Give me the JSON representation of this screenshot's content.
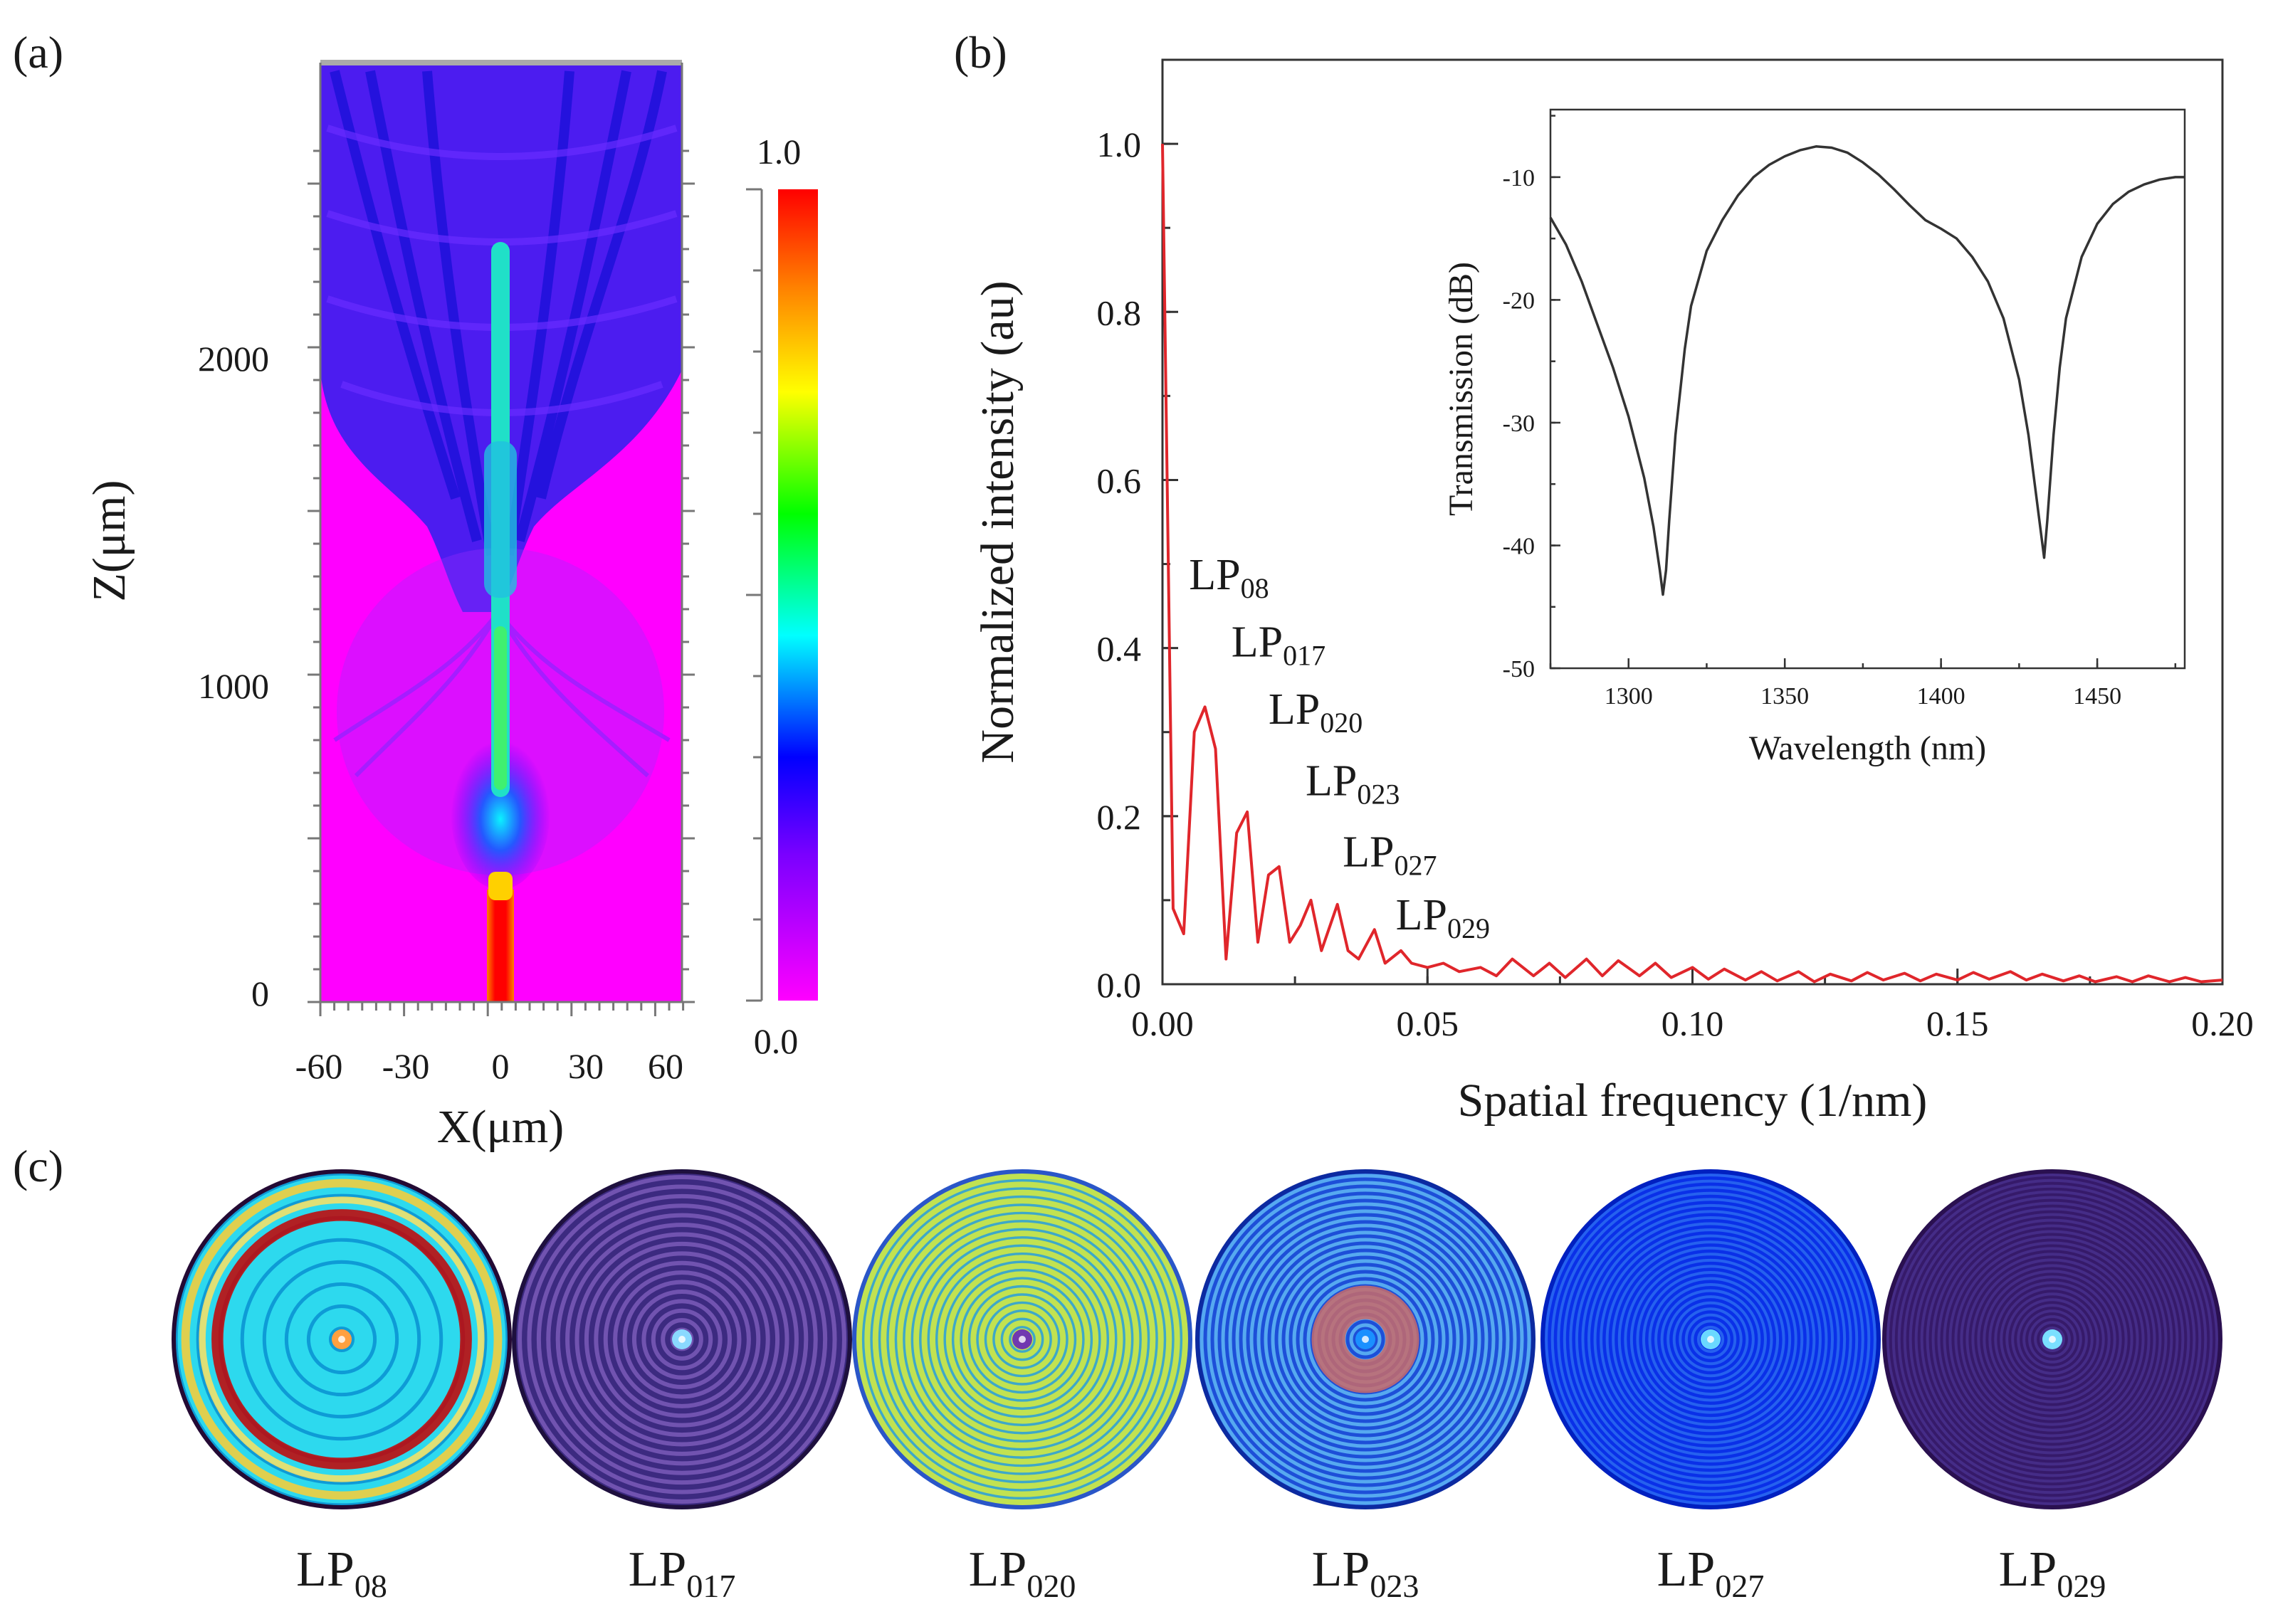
{
  "panels": {
    "a": {
      "letter": "(a)",
      "ylabel": "Z(μm)",
      "xlabel": "X(μm)",
      "x_ticks": [
        "-60",
        "-30",
        "0",
        "30",
        "60"
      ],
      "y_ticks": [
        "0",
        "1000",
        "2000"
      ],
      "colorbar_max": "1.0",
      "colorbar_min": "0.0"
    },
    "b": {
      "letter": "(b)"
    },
    "c": {
      "letter": "(c)"
    }
  },
  "chart_data": [
    {
      "type": "heatmap",
      "panel": "a",
      "xlabel": "X(μm)",
      "ylabel": "Z(μm)",
      "xlim": [
        -65,
        65
      ],
      "ylim": [
        0,
        2880
      ],
      "colorbar": {
        "min": 0.0,
        "max": 1.0
      },
      "colormap": [
        "#ff00ff",
        "#7a00ff",
        "#0000ff",
        "#00ffff",
        "#00ff00",
        "#ffff00",
        "#ff8000",
        "#ff0000"
      ]
    },
    {
      "type": "line",
      "panel": "b",
      "xlabel": "Spatial frequency (1/nm)",
      "ylabel": "Normalized intensity (au)",
      "xlim": [
        0,
        0.2
      ],
      "ylim": [
        0,
        1.1
      ],
      "x_ticks": [
        "0.00",
        "0.05",
        "0.10",
        "0.15",
        "0.20"
      ],
      "y_ticks": [
        "0.0",
        "0.2",
        "0.4",
        "0.6",
        "0.8",
        "1.0"
      ],
      "line_color": "#e0262b",
      "series": [
        {
          "x": [
            0,
            0.002,
            0.004,
            0.006,
            0.008,
            0.01,
            0.012,
            0.014,
            0.016,
            0.018,
            0.02,
            0.022,
            0.024,
            0.026,
            0.028,
            0.03,
            0.033,
            0.035,
            0.037,
            0.04,
            0.042,
            0.045,
            0.047,
            0.05,
            0.053,
            0.056,
            0.06,
            0.063,
            0.066,
            0.07,
            0.073,
            0.076,
            0.08,
            0.083,
            0.086,
            0.09,
            0.093,
            0.096,
            0.1,
            0.103,
            0.106,
            0.11,
            0.113,
            0.116,
            0.12,
            0.123,
            0.126,
            0.13,
            0.133,
            0.136,
            0.14,
            0.143,
            0.146,
            0.15,
            0.153,
            0.156,
            0.16,
            0.163,
            0.166,
            0.17,
            0.173,
            0.176,
            0.18,
            0.183,
            0.186,
            0.19,
            0.193,
            0.196,
            0.2
          ],
          "values": [
            1.0,
            0.09,
            0.06,
            0.3,
            0.33,
            0.28,
            0.03,
            0.18,
            0.205,
            0.05,
            0.13,
            0.14,
            0.05,
            0.07,
            0.1,
            0.04,
            0.095,
            0.04,
            0.03,
            0.065,
            0.025,
            0.04,
            0.025,
            0.02,
            0.025,
            0.015,
            0.02,
            0.01,
            0.03,
            0.01,
            0.025,
            0.008,
            0.03,
            0.01,
            0.028,
            0.01,
            0.025,
            0.008,
            0.02,
            0.006,
            0.018,
            0.005,
            0.015,
            0.004,
            0.015,
            0.003,
            0.012,
            0.004,
            0.014,
            0.005,
            0.013,
            0.004,
            0.012,
            0.005,
            0.014,
            0.006,
            0.015,
            0.005,
            0.012,
            0.004,
            0.01,
            0.003,
            0.009,
            0.003,
            0.01,
            0.003,
            0.008,
            0.003,
            0.005
          ]
        }
      ],
      "annotations": [
        {
          "base": "LP",
          "sub": "08",
          "x": 0.005,
          "y": 0.47
        },
        {
          "base": "LP",
          "sub": "017",
          "x": 0.013,
          "y": 0.39
        },
        {
          "base": "LP",
          "sub": "020",
          "x": 0.02,
          "y": 0.31
        },
        {
          "base": "LP",
          "sub": "023",
          "x": 0.027,
          "y": 0.225
        },
        {
          "base": "LP",
          "sub": "027",
          "x": 0.034,
          "y": 0.14
        },
        {
          "base": "LP",
          "sub": "029",
          "x": 0.044,
          "y": 0.065
        }
      ]
    },
    {
      "type": "line",
      "panel": "b-inset",
      "xlabel": "Wavelength (nm)",
      "ylabel": "Transmission (dB)",
      "xlim": [
        1275,
        1478
      ],
      "ylim": [
        -50,
        -4.5
      ],
      "x_ticks": [
        "1300",
        "1350",
        "1400",
        "1450"
      ],
      "y_ticks": [
        "-10",
        "-20",
        "-30",
        "-40",
        "-50"
      ],
      "line_color": "#333333",
      "series": [
        {
          "x": [
            1275,
            1280,
            1285,
            1290,
            1295,
            1300,
            1305,
            1308,
            1310,
            1311,
            1312,
            1313,
            1315,
            1318,
            1320,
            1325,
            1330,
            1335,
            1340,
            1345,
            1350,
            1355,
            1360,
            1365,
            1370,
            1375,
            1380,
            1385,
            1390,
            1395,
            1400,
            1405,
            1410,
            1415,
            1420,
            1425,
            1428,
            1430,
            1432,
            1433,
            1434,
            1436,
            1438,
            1440,
            1445,
            1450,
            1455,
            1460,
            1465,
            1470,
            1475,
            1478
          ],
          "values": [
            -13.3,
            -15.5,
            -18.5,
            -22.0,
            -25.5,
            -29.5,
            -34.5,
            -38.5,
            -42.0,
            -44.0,
            -42.0,
            -38.0,
            -31.0,
            -24.0,
            -20.5,
            -16.0,
            -13.5,
            -11.5,
            -10.0,
            -9.0,
            -8.3,
            -7.8,
            -7.5,
            -7.6,
            -8.0,
            -8.8,
            -9.8,
            -11.0,
            -12.3,
            -13.5,
            -14.2,
            -15.0,
            -16.5,
            -18.5,
            -21.5,
            -26.5,
            -31.0,
            -35.0,
            -39.0,
            -41.0,
            -38.0,
            -31.0,
            -25.5,
            -21.5,
            -16.5,
            -13.8,
            -12.2,
            -11.2,
            -10.6,
            -10.2,
            -10.0,
            -10.0
          ]
        }
      ]
    }
  ],
  "modes": [
    {
      "base": "LP",
      "sub": "08",
      "rings": 7,
      "stroke": 26,
      "palette": [
        "#0e9bd6",
        "#33e4f2"
      ],
      "center": "#ffa040",
      "outer_ring": "#240a34",
      "bands": [
        {
          "r": 0.74,
          "w": 0.07,
          "color": "#c80000"
        },
        {
          "r": 0.83,
          "w": 0.04,
          "color": "#ffe060"
        },
        {
          "r": 0.93,
          "w": 0.05,
          "color": "#ffcc33"
        }
      ]
    },
    {
      "base": "LP",
      "sub": "017",
      "rings": 17,
      "stroke": 6,
      "palette": [
        "#3c2a80",
        "#7a5ab8"
      ],
      "center": "#8ad9ff",
      "outer_ring": "#1e103e",
      "bands": []
    },
    {
      "base": "LP",
      "sub": "020",
      "rings": 20,
      "stroke": 8,
      "palette": [
        "#3ea8c8",
        "#d8ec3c"
      ],
      "center": "#7038b0",
      "outer_ring": "#2a56c8",
      "bands": []
    },
    {
      "base": "LP",
      "sub": "023",
      "rings": 23,
      "stroke": 5,
      "palette": [
        "#1d4fd8",
        "#60b8f4"
      ],
      "center": "#1a90ff",
      "outer_ring": "#0c2aa0",
      "bands": [
        {
          "r": 0.22,
          "w": 0.2,
          "color": "#c86a6a"
        }
      ]
    },
    {
      "base": "LP",
      "sub": "027",
      "rings": 27,
      "stroke": 4,
      "palette": [
        "#0a30e8",
        "#2a6af0"
      ],
      "center": "#6ad8ff",
      "outer_ring": "#0020c0",
      "bands": []
    },
    {
      "base": "LP",
      "sub": "029",
      "rings": 29,
      "stroke": 4,
      "palette": [
        "#361a6a",
        "#48308c"
      ],
      "center": "#7ae0ff",
      "outer_ring": "#2a1050",
      "bands": []
    }
  ]
}
